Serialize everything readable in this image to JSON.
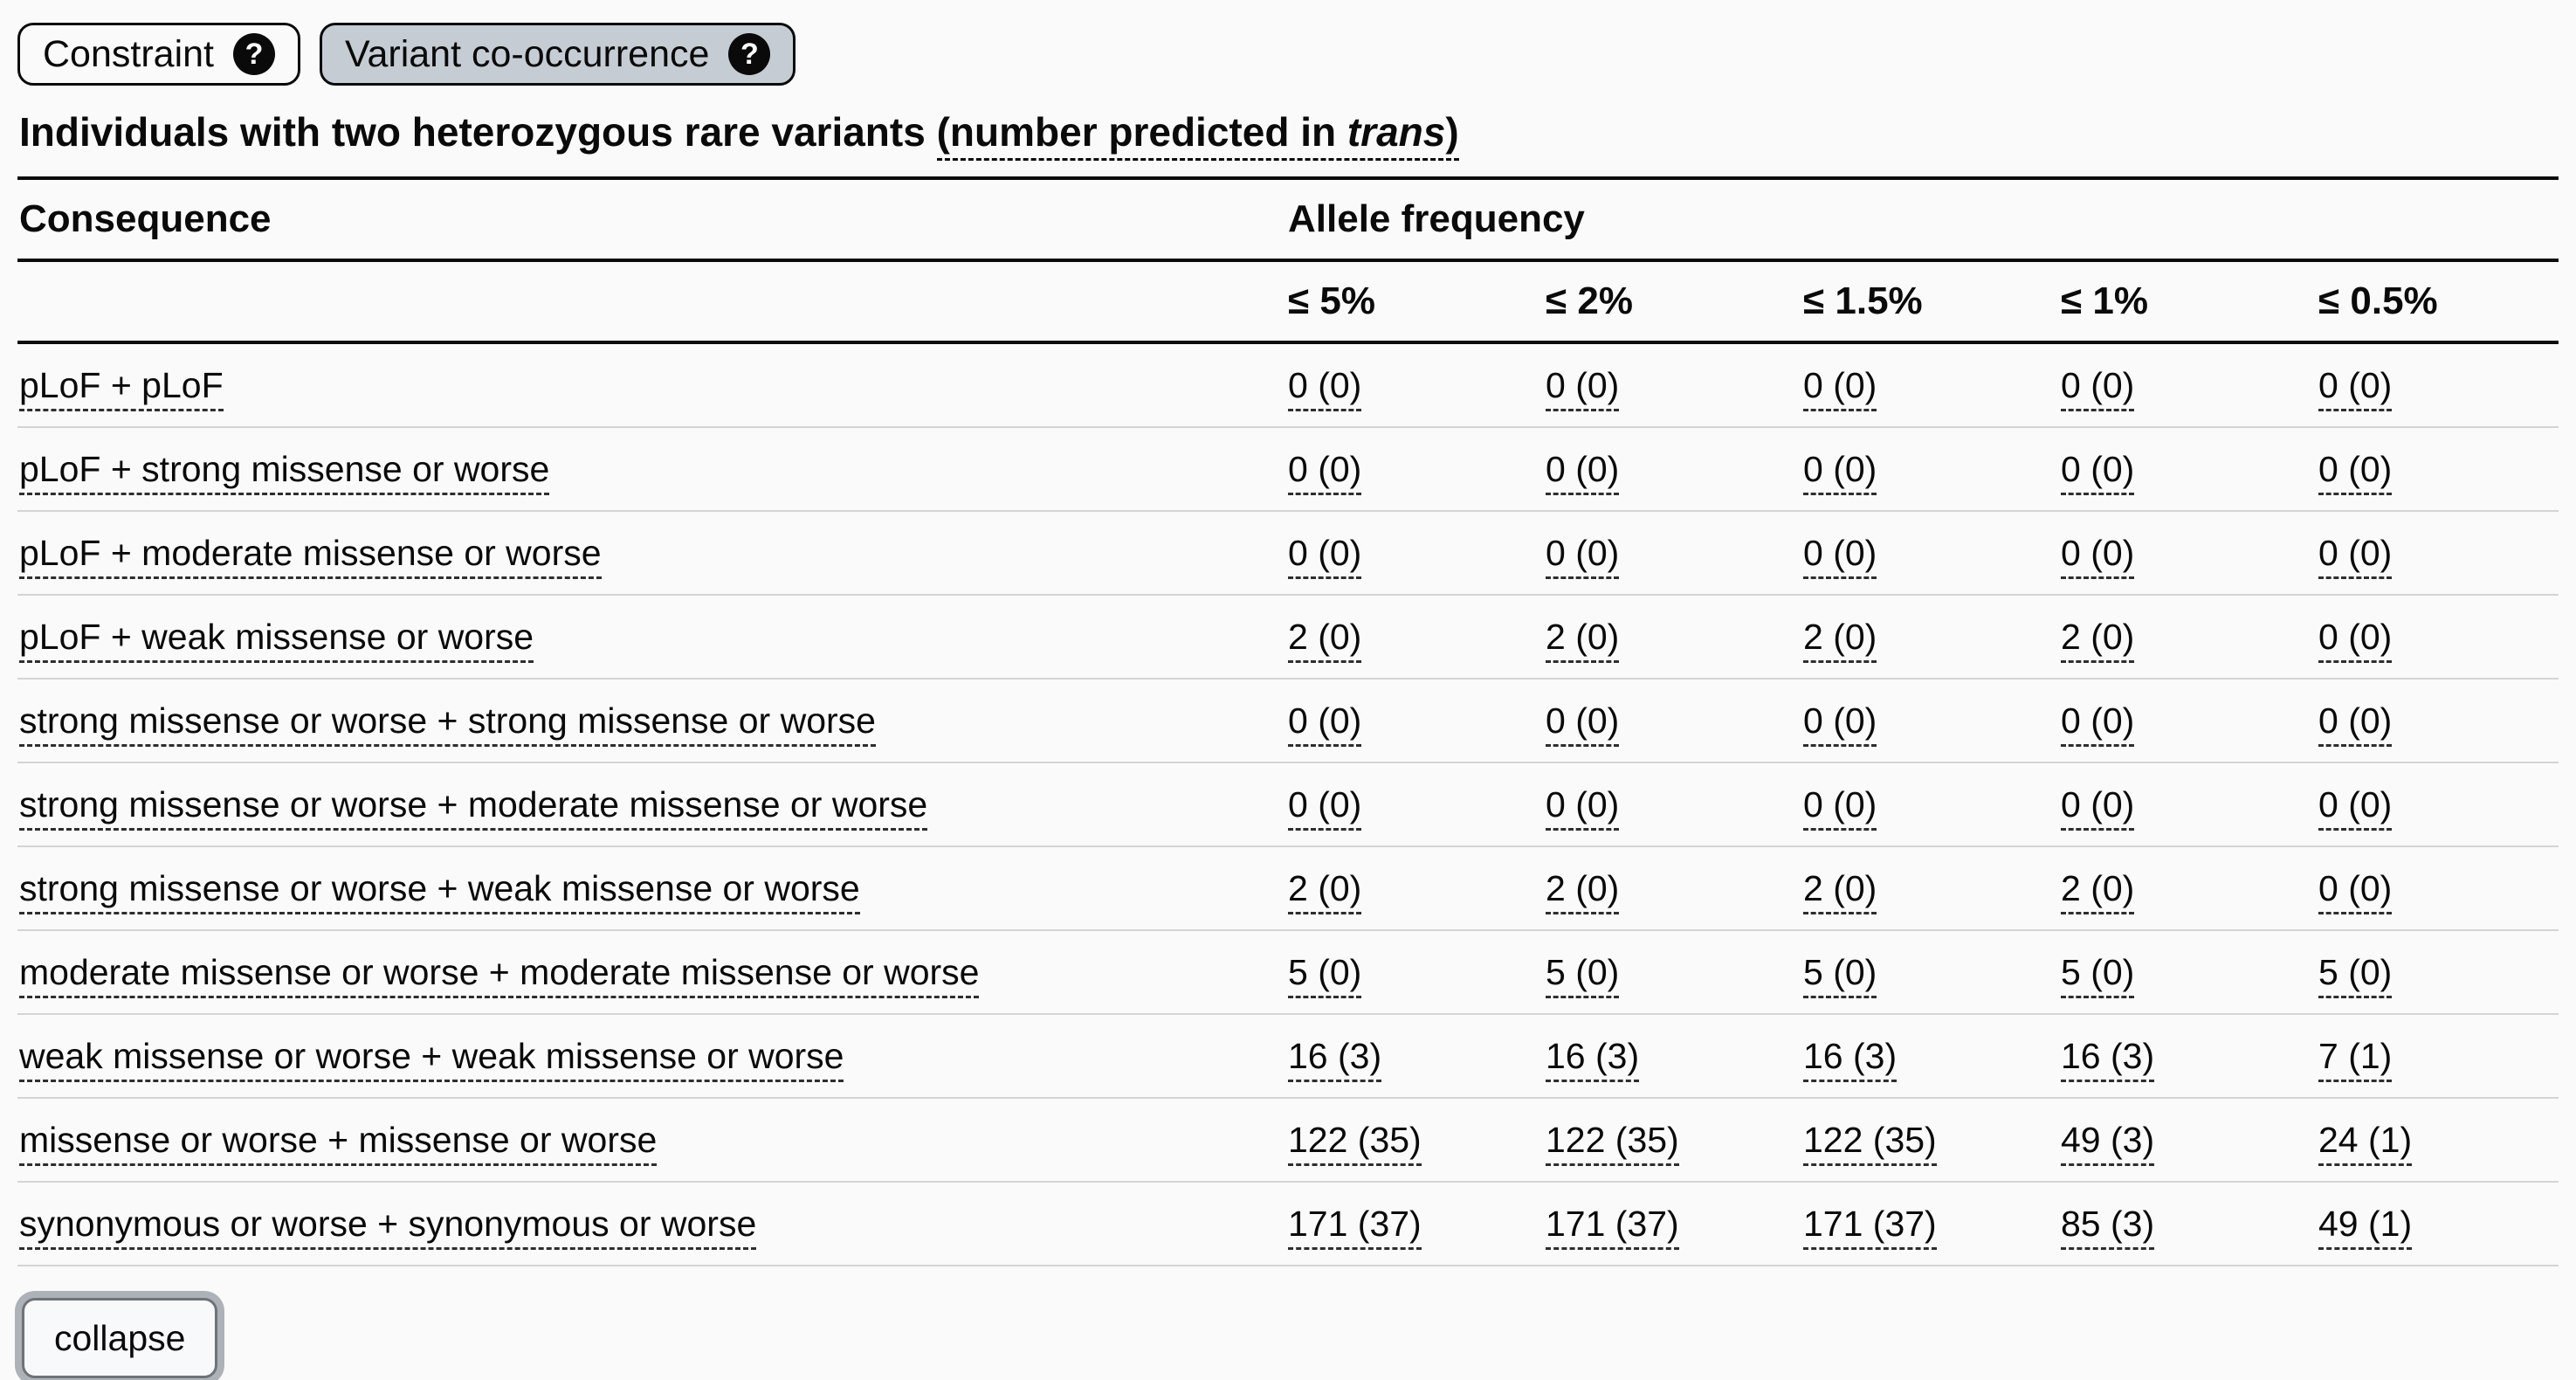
{
  "colors": {
    "page_bg": "#fafafa",
    "active_tab_bg": "#c6ccd4",
    "separator": "#d4d4d4",
    "focus_ring": "#adb2b8",
    "button_border": "#6e7378",
    "button_face": "#f8f9fb"
  },
  "tabs": [
    {
      "label": "Constraint",
      "help_icon": "question-circle-icon",
      "active": false
    },
    {
      "label": "Variant co-occurrence",
      "help_icon": "question-circle-icon",
      "active": true
    }
  ],
  "heading": {
    "prefix": "Individuals with ",
    "bold": "two heterozygous",
    "middle": " rare variants ",
    "underlined_prefix": "(number predicted in ",
    "italic": "trans",
    "suffix": ")"
  },
  "table": {
    "consequence_header": "Consequence",
    "group_header": "Allele frequency",
    "columns": [
      "≤ 5%",
      "≤ 2%",
      "≤ 1.5%",
      "≤ 1%",
      "≤ 0.5%"
    ],
    "rows": [
      {
        "consequence": "pLoF + pLoF",
        "values": [
          "0 (0)",
          "0 (0)",
          "0 (0)",
          "0 (0)",
          "0 (0)"
        ]
      },
      {
        "consequence": "pLoF + strong missense or worse",
        "values": [
          "0 (0)",
          "0 (0)",
          "0 (0)",
          "0 (0)",
          "0 (0)"
        ]
      },
      {
        "consequence": "pLoF + moderate missense or worse",
        "values": [
          "0 (0)",
          "0 (0)",
          "0 (0)",
          "0 (0)",
          "0 (0)"
        ]
      },
      {
        "consequence": "pLoF + weak missense or worse",
        "values": [
          "2 (0)",
          "2 (0)",
          "2 (0)",
          "2 (0)",
          "0 (0)"
        ]
      },
      {
        "consequence": "strong missense or worse + strong missense or worse",
        "values": [
          "0 (0)",
          "0 (0)",
          "0 (0)",
          "0 (0)",
          "0 (0)"
        ]
      },
      {
        "consequence": "strong missense or worse + moderate missense or worse",
        "values": [
          "0 (0)",
          "0 (0)",
          "0 (0)",
          "0 (0)",
          "0 (0)"
        ]
      },
      {
        "consequence": "strong missense or worse + weak missense or worse",
        "values": [
          "2 (0)",
          "2 (0)",
          "2 (0)",
          "2 (0)",
          "0 (0)"
        ]
      },
      {
        "consequence": "moderate missense or worse + moderate missense or worse",
        "values": [
          "5 (0)",
          "5 (0)",
          "5 (0)",
          "5 (0)",
          "5 (0)"
        ]
      },
      {
        "consequence": "weak missense or worse + weak missense or worse",
        "values": [
          "16 (3)",
          "16 (3)",
          "16 (3)",
          "16 (3)",
          "7 (1)"
        ]
      },
      {
        "consequence": "missense or worse + missense or worse",
        "values": [
          "122 (35)",
          "122 (35)",
          "122 (35)",
          "49 (3)",
          "24 (1)"
        ]
      },
      {
        "consequence": "synonymous or worse + synonymous or worse",
        "values": [
          "171 (37)",
          "171 (37)",
          "171 (37)",
          "85 (3)",
          "49 (1)"
        ]
      }
    ]
  },
  "collapse_button": {
    "label": "collapse"
  }
}
